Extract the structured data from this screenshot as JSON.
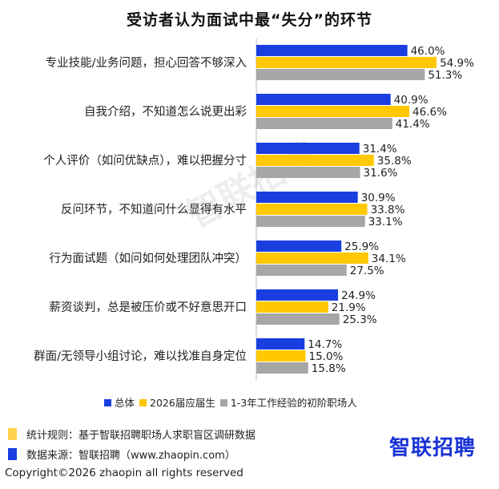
{
  "title": "受访者认为面试中最“失分”的环节",
  "chart_data": {
    "type": "bar",
    "orientation": "horizontal",
    "categories": [
      "专业技能/业务问题，担心回答不够深入",
      "自我介绍，不知道怎么说更出彩",
      "个人评价（如问优缺点），难以把握分寸",
      "反问环节，不知道问什么显得有水平",
      "行为面试题（如问如何处理团队冲突）",
      "薪资谈判，总是被压价或不好意思开口",
      "群面/无领导小组讨论，难以找准自身定位"
    ],
    "series": [
      {
        "name": "总体",
        "color": "#1a3ee0",
        "values": [
          46.0,
          40.9,
          31.4,
          30.9,
          25.9,
          24.9,
          14.7
        ]
      },
      {
        "name": "2026届应届生",
        "color": "#ffc800",
        "values": [
          54.9,
          46.6,
          35.8,
          33.8,
          34.1,
          21.9,
          15.0
        ]
      },
      {
        "name": "1-3年工作经验的初阶职场人",
        "color": "#a6a6a6",
        "values": [
          51.3,
          41.4,
          31.6,
          33.1,
          27.5,
          25.3,
          15.8
        ]
      }
    ],
    "value_format": "%",
    "legend_position": "bottom",
    "grid": false
  },
  "footer": {
    "rule_label": "统计规则：基于智联招聘职场人求职盲区调研数据",
    "source_label": "数据来源：智联招聘（www.zhaopin.com）",
    "rule_color": "#ffd24d",
    "source_color": "#1a3ee0"
  },
  "copyright": "Copyright©2026 zhaopin all rights reserved",
  "brand": "智联招聘",
  "watermark": "智联招聘"
}
